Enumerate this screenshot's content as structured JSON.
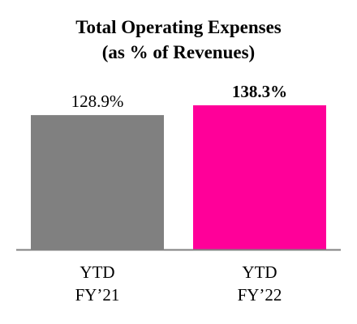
{
  "title_line1": "Total Operating Expenses",
  "title_line2": "(as % of Revenues)",
  "chart_data": {
    "type": "bar",
    "title": "Total Operating Expenses (as % of Revenues)",
    "categories": [
      "YTD FY’21",
      "YTD FY’22"
    ],
    "category_lines": [
      [
        "YTD",
        "FY’21"
      ],
      [
        "YTD",
        "FY’22"
      ]
    ],
    "values": [
      128.9,
      138.3
    ],
    "value_labels": [
      "128.9%",
      "138.3%"
    ],
    "value_label_bold": [
      false,
      true
    ],
    "bar_colors": [
      "#808080",
      "#FF0099"
    ],
    "ylim": [
      0,
      138.3
    ],
    "xlabel": "",
    "ylabel": "",
    "grid": false,
    "legend": "none"
  }
}
